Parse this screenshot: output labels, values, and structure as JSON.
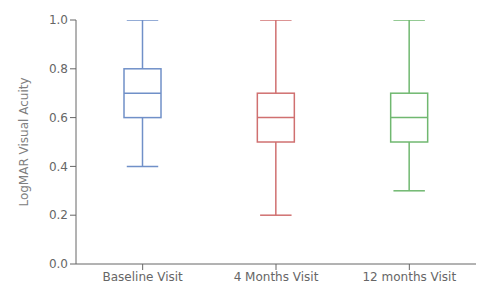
{
  "chart_data": {
    "type": "box",
    "ylabel": "LogMAR Visual Acuity",
    "categories": [
      "Baseline Visit",
      "4 Months Visit",
      "12 months Visit"
    ],
    "colors": [
      "#7090c8",
      "#d07070",
      "#70b870"
    ],
    "ylim": [
      0,
      1.0
    ],
    "yticks": [
      {
        "value": 0,
        "label": "0.0"
      },
      0.2,
      0.4,
      0.6,
      0.8,
      {
        "value": 1.0,
        "label": "1.0"
      }
    ],
    "grid": false,
    "med": [
      0.7,
      0.6,
      0.6
    ],
    "q1": [
      0.6,
      0.5,
      0.5
    ],
    "q3": [
      0.8,
      0.7,
      0.7
    ],
    "whislo": [
      0.4,
      0.2,
      0.3
    ],
    "whishi": [
      1.0,
      1.0,
      1.0
    ]
  }
}
